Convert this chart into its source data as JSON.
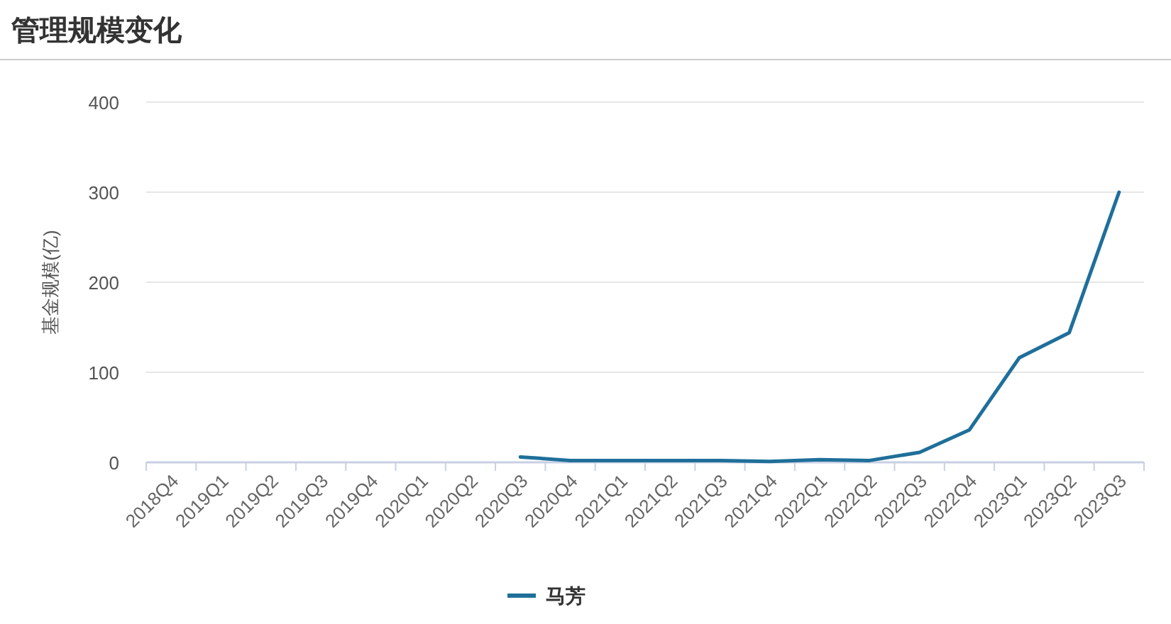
{
  "chart_data": {
    "type": "line",
    "title": "管理规模变化",
    "ylabel": "基金规模(亿)",
    "categories": [
      "2018Q4",
      "2019Q1",
      "2019Q2",
      "2019Q3",
      "2019Q4",
      "2020Q1",
      "2020Q2",
      "2020Q3",
      "2020Q4",
      "2021Q1",
      "2021Q2",
      "2021Q3",
      "2021Q4",
      "2022Q1",
      "2022Q2",
      "2022Q3",
      "2022Q4",
      "2023Q1",
      "2023Q2",
      "2023Q3"
    ],
    "series": [
      {
        "name": "马芳",
        "color": "#1f6f9a",
        "values": [
          null,
          null,
          null,
          null,
          null,
          null,
          null,
          6,
          2,
          2,
          2,
          2,
          1,
          3,
          2,
          11,
          36,
          116,
          144,
          300
        ]
      }
    ],
    "ylim": [
      0,
      400
    ],
    "yticks": [
      0,
      100,
      200,
      300,
      400
    ],
    "grid": "y",
    "legend": "bottom",
    "marker": "none",
    "line_style": "solid"
  }
}
